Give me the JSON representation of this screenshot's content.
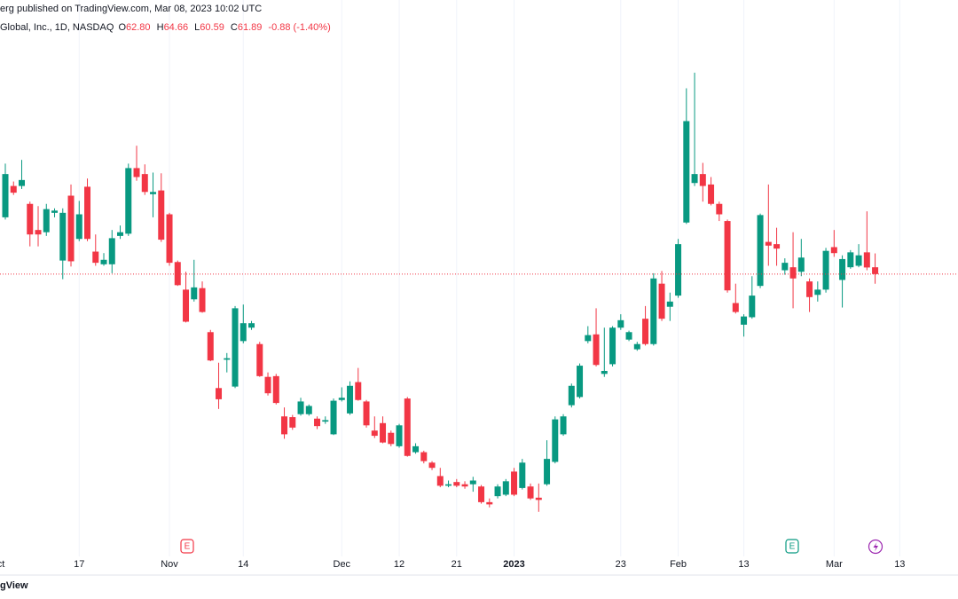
{
  "header": {
    "published": "erg published on TradingView.com, Mar 08, 2023 10:02 UTC",
    "brand": "gView"
  },
  "chart_data": {
    "type": "candlestick",
    "title": "Global, Inc., 1D, NASDAQ",
    "ohlc_prefixes": [
      "O",
      "H",
      "L",
      "C"
    ],
    "ohlc_labels": [
      "62.80",
      "64.66",
      "60.59",
      "61.89"
    ],
    "change_label": "-0.88 (-1.40%)",
    "up_color": "#089981",
    "down_color": "#f23645",
    "open": [
      69.5,
      73.7,
      73.7,
      71.3,
      67.8,
      67.5,
      70.1,
      63.7,
      72.4,
      66.6,
      73.6,
      64.9,
      63.2,
      63.2,
      67.0,
      67.3,
      76.1,
      75.3,
      72.6,
      73.1,
      69.9,
      63.5,
      59.8,
      58.5,
      60.0,
      54.1,
      46.6,
      50.4,
      46.8,
      52.9,
      54.7,
      52.5,
      48.1,
      48.2,
      42.8,
      42.7,
      43.1,
      43.1,
      42.5,
      42.1,
      40.4,
      45.0,
      43.2,
      47.4,
      44.8,
      40.9,
      41.9,
      40.6,
      38.8,
      45.2,
      38.0,
      38.0,
      36.6,
      34.8,
      33.5,
      34.0,
      33.7,
      33.7,
      33.4,
      31.3,
      32.1,
      32.3,
      35.4,
      33.2,
      33.4,
      31.9,
      33.7,
      36.7,
      40.4,
      44.3,
      45.4,
      52.9,
      53.8,
      48.5,
      49.8,
      54.7,
      53.1,
      51.8,
      55.9,
      52.5,
      60.6,
      57.5,
      59.0,
      68.8,
      74.1,
      75.3,
      73.9,
      71.3,
      69.0,
      58.0,
      55.1,
      56.1,
      60.3,
      66.2,
      65.9,
      62.4,
      62.8,
      62.2,
      60.9,
      59.1,
      59.8,
      65.5,
      61.1,
      62.8,
      63.0,
      64.8,
      62.8
    ],
    "high": [
      76.7,
      74.3,
      77.2,
      71.6,
      71.0,
      71.3,
      70.7,
      70.7,
      73.9,
      71.7,
      74.7,
      67.2,
      64.7,
      67.8,
      68.4,
      76.7,
      79.1,
      76.6,
      75.5,
      75.4,
      70.1,
      63.7,
      62.2,
      63.8,
      60.9,
      54.4,
      50.0,
      51.3,
      57.6,
      57.8,
      55.6,
      52.8,
      48.7,
      48.5,
      44.0,
      43.0,
      45.3,
      44.4,
      42.8,
      42.8,
      45.2,
      46.7,
      47.5,
      49.3,
      45.0,
      42.8,
      42.8,
      40.9,
      41.8,
      45.4,
      39.2,
      38.2,
      36.8,
      35.9,
      34.2,
      34.4,
      34.1,
      34.7,
      33.6,
      31.8,
      33.7,
      34.4,
      35.9,
      37.1,
      33.8,
      33.8,
      39.6,
      42.8,
      43.1,
      47.2,
      49.9,
      54.9,
      57.3,
      54.7,
      54.9,
      56.5,
      54.3,
      52.8,
      57.6,
      62.0,
      62.3,
      59.4,
      66.6,
      86.8,
      88.9,
      76.8,
      74.9,
      71.6,
      69.2,
      60.6,
      56.5,
      61.6,
      70.0,
      73.9,
      68.1,
      64.0,
      67.5,
      66.6,
      61.3,
      60.9,
      65.4,
      67.8,
      64.4,
      65.1,
      65.9,
      70.3,
      64.66
    ],
    "low": [
      69.2,
      72.5,
      73.3,
      65.6,
      65.6,
      67.0,
      69.5,
      61.2,
      62.9,
      66.3,
      66.3,
      63.0,
      63.0,
      62.0,
      66.6,
      67.0,
      74.4,
      72.5,
      69.5,
      66.2,
      63.0,
      60.3,
      55.4,
      58.2,
      56.7,
      50.2,
      43.8,
      48.7,
      46.6,
      52.6,
      54.4,
      48.1,
      45.6,
      44.4,
      39.8,
      41.0,
      42.9,
      42.9,
      41.1,
      41.8,
      40.3,
      44.8,
      43.0,
      44.9,
      41.3,
      39.9,
      39.2,
      38.8,
      38.6,
      37.4,
      37.8,
      36.5,
      35.6,
      33.3,
      33.3,
      33.3,
      33.1,
      32.7,
      31.1,
      30.6,
      31.8,
      32.1,
      32.1,
      33.0,
      31.6,
      30.0,
      33.5,
      36.5,
      40.2,
      44.0,
      45.2,
      52.6,
      49.5,
      48.1,
      49.5,
      54.4,
      52.9,
      51.6,
      52.3,
      52.3,
      55.6,
      55.6,
      58.7,
      68.6,
      73.7,
      71.6,
      71.1,
      69.0,
      59.4,
      56.6,
      53.5,
      55.9,
      60.0,
      63.0,
      63.0,
      61.8,
      57.3,
      61.6,
      56.8,
      58.2,
      59.4,
      64.2,
      57.4,
      62.6,
      62.8,
      62.4,
      60.59
    ],
    "close": [
      75.3,
      72.8,
      74.5,
      67.2,
      67.2,
      70.6,
      70.4,
      70.1,
      63.6,
      69.9,
      66.6,
      63.4,
      63.8,
      66.7,
      67.5,
      76.1,
      74.9,
      72.9,
      72.9,
      66.5,
      63.4,
      60.4,
      55.5,
      60.1,
      56.8,
      50.3,
      45.1,
      50.6,
      57.3,
      55.3,
      55.3,
      48.2,
      45.9,
      44.6,
      40.4,
      41.3,
      44.8,
      44.2,
      41.5,
      42.3,
      44.9,
      45.3,
      46.9,
      45.0,
      41.6,
      40.2,
      39.3,
      39.1,
      41.6,
      37.5,
      38.8,
      36.8,
      35.9,
      33.5,
      33.7,
      33.5,
      33.4,
      34.2,
      31.3,
      31.0,
      33.4,
      34.1,
      32.3,
      36.6,
      31.8,
      31.6,
      37.1,
      42.4,
      42.8,
      46.9,
      49.6,
      53.7,
      49.7,
      48.9,
      54.7,
      55.7,
      54.1,
      52.5,
      52.5,
      61.3,
      55.9,
      58.2,
      65.9,
      82.4,
      75.3,
      73.7,
      71.3,
      69.9,
      59.7,
      56.8,
      56.2,
      59.0,
      69.8,
      65.7,
      65.3,
      63.4,
      61.3,
      64.1,
      58.8,
      59.8,
      65.0,
      64.7,
      63.9,
      64.8,
      64.4,
      62.77,
      61.89
    ],
    "xlim": [
      -0.65,
      116.1
    ],
    "ylim": [
      27,
      94
    ],
    "xticks": [
      {
        "value": -1,
        "label": "Oct"
      },
      {
        "value": 9,
        "label": "17"
      },
      {
        "value": 20,
        "label": "Nov"
      },
      {
        "value": 29,
        "label": "14"
      },
      {
        "value": 41,
        "label": "Dec"
      },
      {
        "value": 48,
        "label": "12"
      },
      {
        "value": 55,
        "label": "21"
      },
      {
        "value": 62,
        "label": "2023"
      },
      {
        "value": 75,
        "label": "23"
      },
      {
        "value": 82,
        "label": "Feb"
      },
      {
        "value": 90,
        "label": "13"
      },
      {
        "value": 101,
        "label": "Mar"
      },
      {
        "value": 109,
        "label": "13"
      }
    ],
    "grid": true,
    "events": [
      {
        "label": "E"
      },
      {
        "label": "E"
      }
    ]
  }
}
